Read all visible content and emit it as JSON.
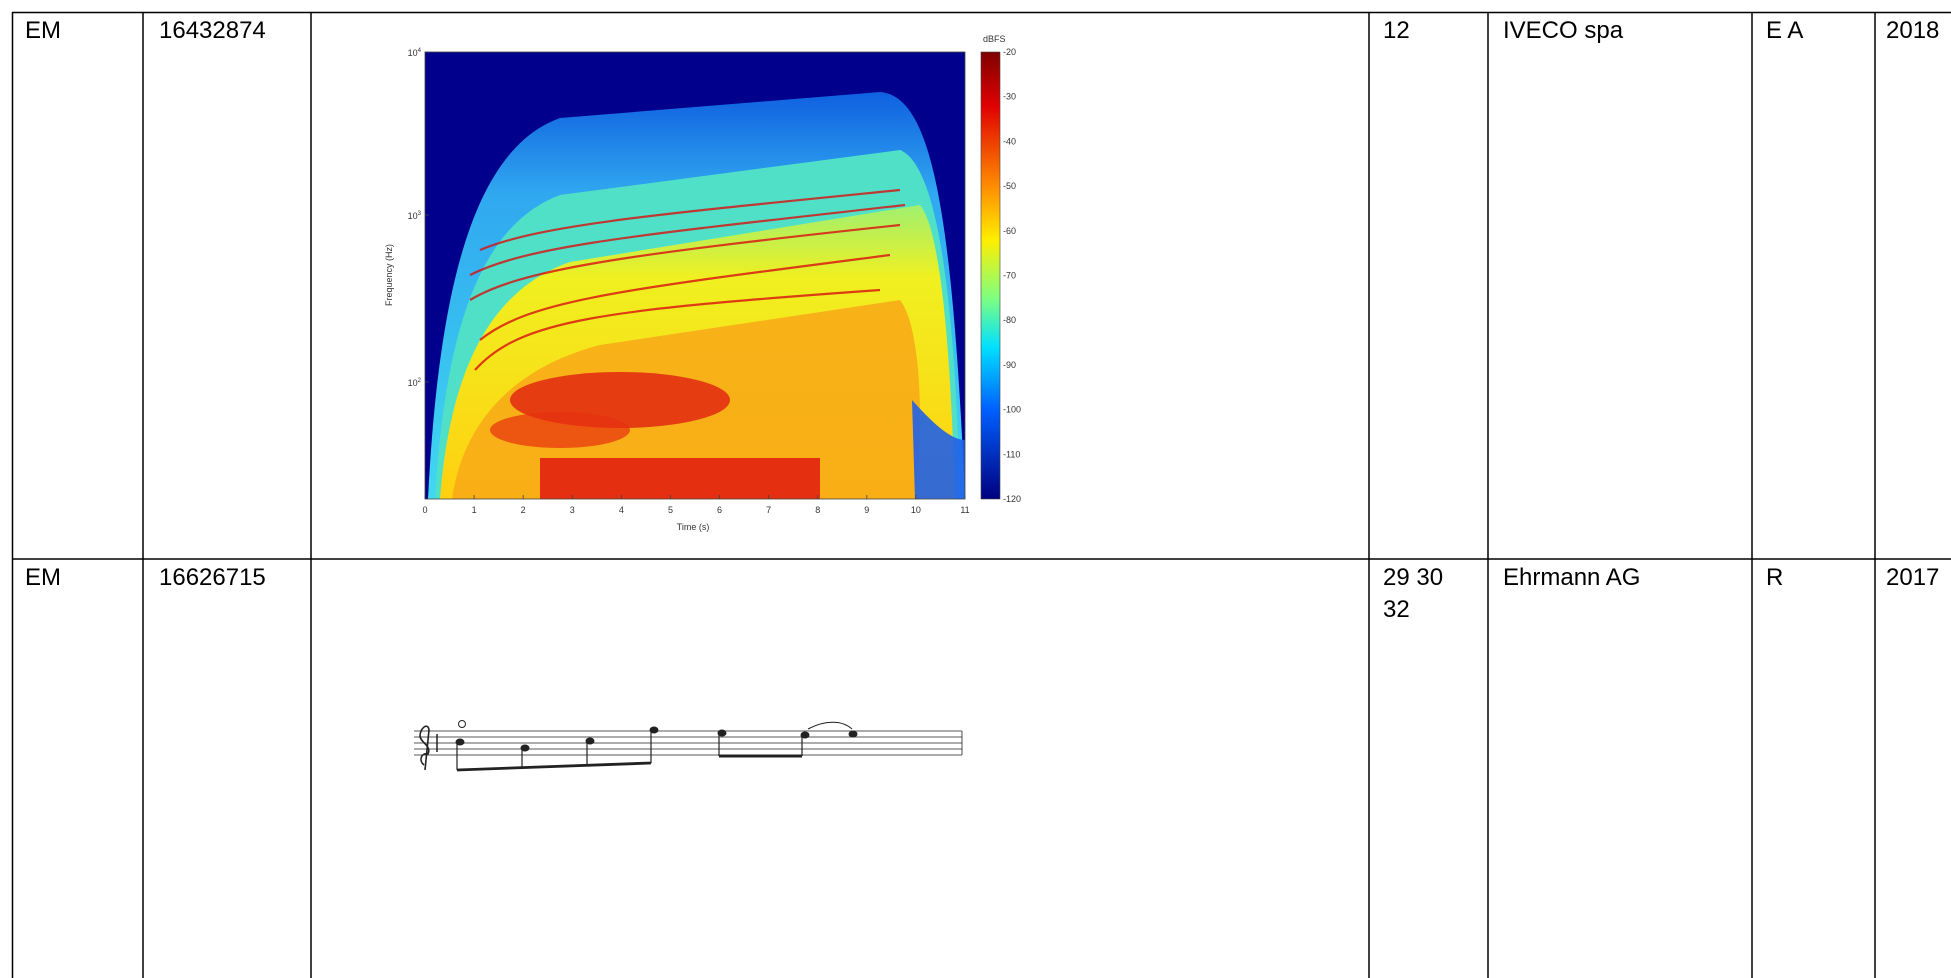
{
  "table": {
    "rows": [
      {
        "office": "EM",
        "number": "16432874",
        "classes": [
          "12"
        ],
        "owner": "IVECO spa",
        "kind": "E A",
        "year": "2018",
        "image": {
          "type": "spectrogram",
          "y_label": "Frequency (Hz)",
          "x_label": "Time (s)",
          "colorbar_label": "dBFS",
          "x_ticks": [
            "0",
            "1",
            "2",
            "3",
            "4",
            "5",
            "6",
            "7",
            "8",
            "9",
            "10",
            "11"
          ],
          "y_ticks": [
            {
              "base": "10",
              "exp": "4"
            },
            {
              "base": "10",
              "exp": "3"
            },
            {
              "base": "10",
              "exp": "2"
            }
          ],
          "colorbar_ticks": [
            "-20",
            "-30",
            "-40",
            "-50",
            "-60",
            "-70",
            "-80",
            "-90",
            "-100",
            "-110",
            "-120"
          ]
        }
      },
      {
        "office": "EM",
        "number": "16626715",
        "classes": [
          "29 30",
          "32"
        ],
        "owner": "Ehrmann AG",
        "kind": "R",
        "year": "2017",
        "image": {
          "type": "sheet-music"
        }
      }
    ]
  }
}
